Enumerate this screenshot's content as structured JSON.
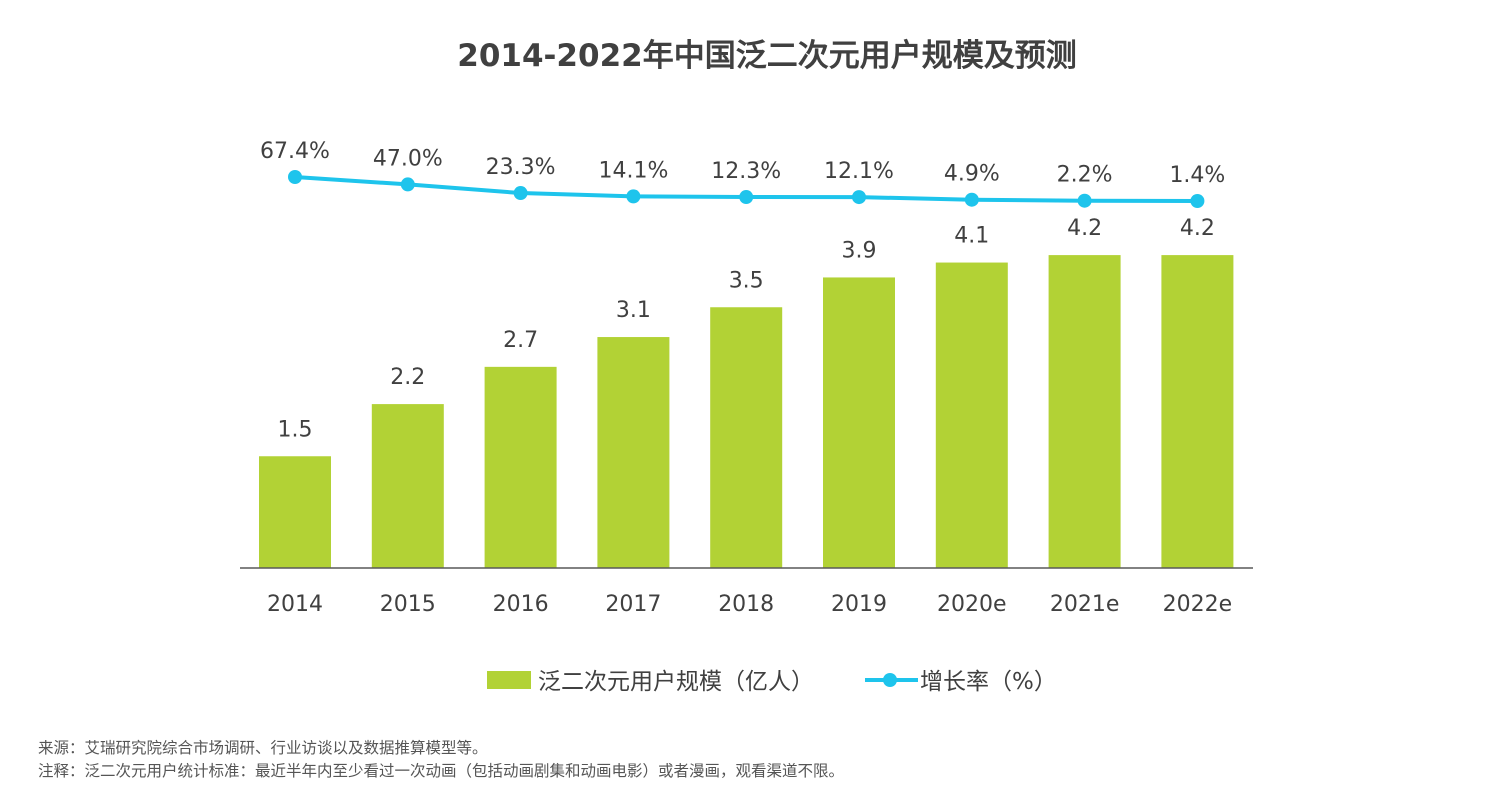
{
  "chart_data": {
    "type": "bar",
    "title": "2014-2022年中国泛二次元用户规模及预测",
    "categories": [
      "2014",
      "2015",
      "2016",
      "2017",
      "2018",
      "2019",
      "2020e",
      "2021e",
      "2022e"
    ],
    "series": [
      {
        "name": "泛二次元用户规模（亿人）",
        "type": "bar",
        "values": [
          1.5,
          2.2,
          2.7,
          3.1,
          3.5,
          3.9,
          4.1,
          4.2,
          4.2
        ],
        "labels": [
          "1.5",
          "2.2",
          "2.7",
          "3.1",
          "3.5",
          "3.9",
          "4.1",
          "4.2",
          "4.2"
        ],
        "color": "#b2d235"
      },
      {
        "name": "增长率（%）",
        "type": "line",
        "values": [
          67.4,
          47.0,
          23.3,
          14.1,
          12.3,
          12.1,
          4.9,
          2.2,
          1.4
        ],
        "labels": [
          "67.4%",
          "47.0%",
          "23.3%",
          "14.1%",
          "12.3%",
          "12.1%",
          "4.9%",
          "2.2%",
          "1.4%"
        ],
        "color": "#1ec4ec"
      }
    ],
    "legend_position": "bottom",
    "grid": false
  },
  "notes": {
    "source": "来源：艾瑞研究院综合市场调研、行业访谈以及数据推算模型等。",
    "annotation": "注释：泛二次元用户统计标准：最近半年内至少看过一次动画（包括动画剧集和动画电影）或者漫画，观看渠道不限。"
  }
}
